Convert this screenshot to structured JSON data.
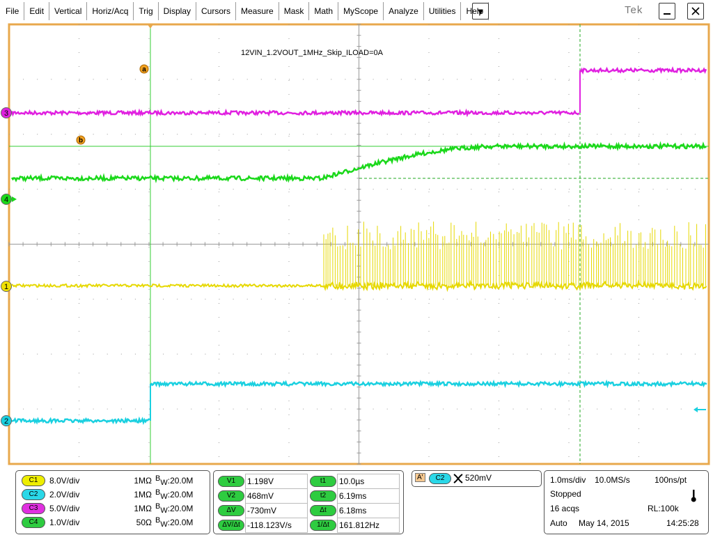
{
  "menu": [
    "File",
    "Edit",
    "Vertical",
    "Horiz/Acq",
    "Trig",
    "Display",
    "Cursors",
    "Measure",
    "Mask",
    "Math",
    "MyScope",
    "Analyze",
    "Utilities",
    "Help"
  ],
  "logo": "Tek",
  "display": {
    "label": "12VIN_1.2VOUT_1MHz_Skip_ILOAD=0A",
    "markers": [
      "a",
      "b"
    ],
    "channel_markers": [
      "3",
      "4",
      "1",
      "2"
    ]
  },
  "channels": [
    {
      "id": "C1",
      "scale": "8.0V/div",
      "impedance": "1MΩ",
      "bw_b": "B",
      "bw_w": "W",
      "bw_value": ":20.0M"
    },
    {
      "id": "C2",
      "scale": "2.0V/div",
      "impedance": "1MΩ",
      "bw_b": "B",
      "bw_w": "W",
      "bw_value": ":20.0M"
    },
    {
      "id": "C3",
      "scale": "5.0V/div",
      "impedance": "1MΩ",
      "bw_b": "B",
      "bw_w": "W",
      "bw_value": ":20.0M"
    },
    {
      "id": "C4",
      "scale": "1.0V/div",
      "impedance": "50Ω",
      "bw_b": "B",
      "bw_w": "W",
      "bw_value": ":20.0M"
    }
  ],
  "cursors": [
    {
      "v_label": "V1",
      "v_value": "1.198V",
      "t_label": "t1",
      "t_value": "10.0µs"
    },
    {
      "v_label": "V2",
      "v_value": "468mV",
      "t_label": "t2",
      "t_value": "6.19ms"
    },
    {
      "v_label": "ΔV",
      "v_value": "-730mV",
      "t_label": "Δt",
      "t_value": "6.18ms"
    },
    {
      "v_label": "ΔV/Δt",
      "v_value": "-118.123V/s",
      "t_label": "1/Δt",
      "t_value": "161.812Hz"
    }
  ],
  "trigger": {
    "mode": "A'",
    "source": "C2",
    "level": "520mV"
  },
  "acquisition": {
    "horizontal_scale": "1.0ms/div",
    "sample_rate": "10.0MS/s",
    "resolution": "100ns/pt",
    "state": "Stopped",
    "acquisitions": "16 acqs",
    "record_length": "RL:100k",
    "trigger_mode": "Auto",
    "date": "May 14, 2015",
    "time": "14:25:28"
  }
}
